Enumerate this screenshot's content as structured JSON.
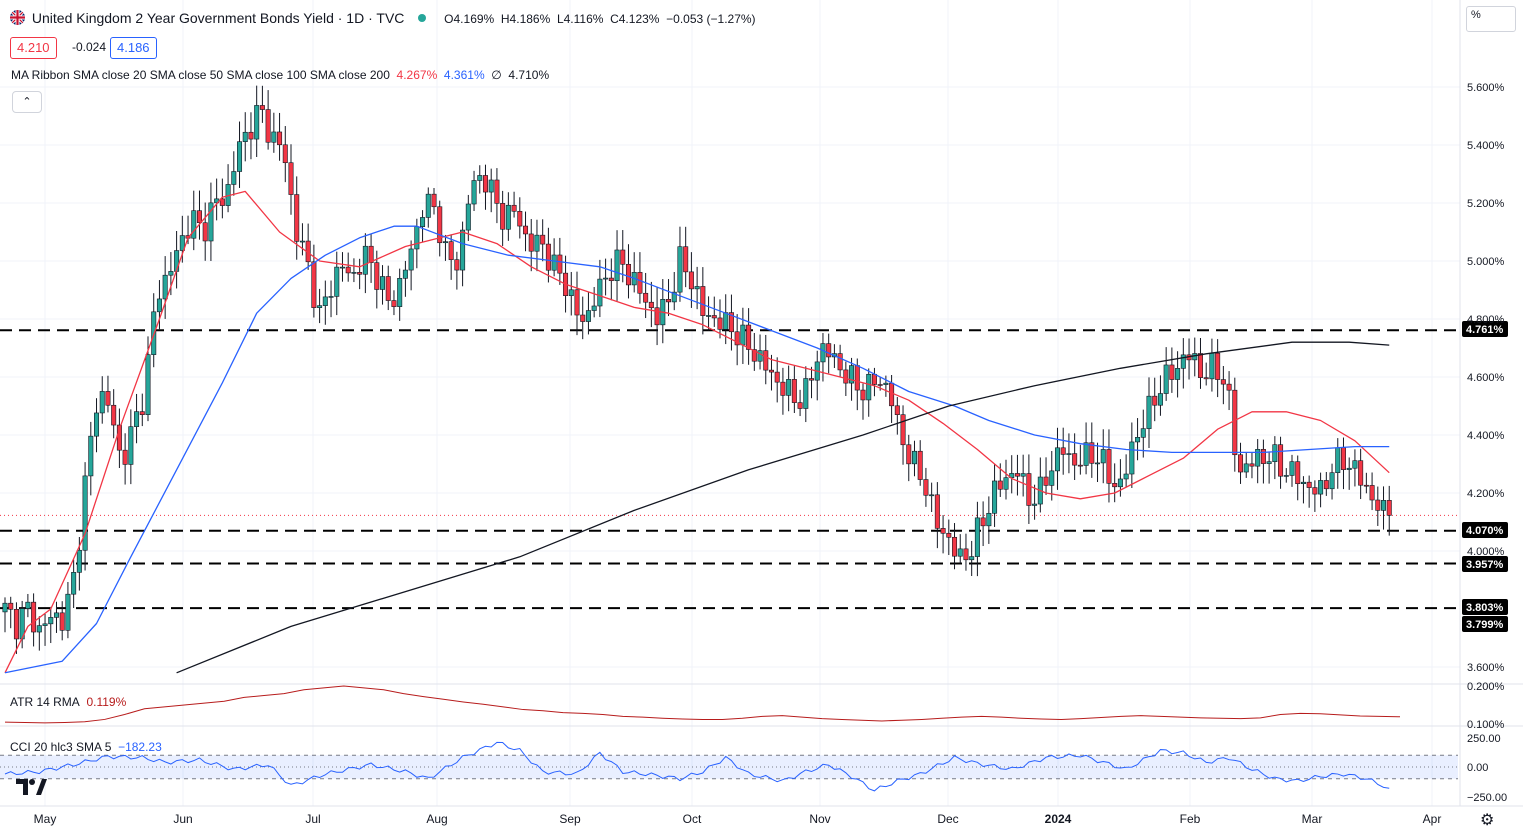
{
  "header": {
    "title": "United Kingdom 2 Year Government Bonds Yield · 1D · TVC",
    "open": "O4.169%",
    "high": "H4.186%",
    "low": "L4.116%",
    "close": "C4.123%",
    "change": "−0.053 (−1.27%)",
    "sell_price": "4.210",
    "spread": "-0.024",
    "buy_price": "4.186"
  },
  "ma_ribbon": {
    "label": "MA Ribbon SMA close 20 SMA close 50 SMA close 100 SMA close 200",
    "v1": "4.267%",
    "v2": "4.361%",
    "v3": "∅",
    "v4": "4.710%"
  },
  "atr": {
    "label": "ATR 14 RMA",
    "value": "0.119%"
  },
  "cci": {
    "label": "CCI 20 hlc3 SMA 5",
    "value": "−182.23"
  },
  "unit_label": "%",
  "colors": {
    "up": "#26a69a",
    "down": "#f23645",
    "sma20": "#f23645",
    "sma50": "#2962ff",
    "sma200": "#131722",
    "atr": "#b71c1c",
    "cci": "#2962ff",
    "cci_band": "#2962ff"
  },
  "icons": {
    "collapse": "chevron-up-icon",
    "logo": "tradingview-logo-icon",
    "settings": "gear-icon"
  },
  "chart_data": {
    "type": "candlestick",
    "x_axis": {
      "labels": [
        "May",
        "Jun",
        "Jul",
        "Aug",
        "Sep",
        "Oct",
        "Nov",
        "Dec",
        "2024",
        "Feb",
        "Mar",
        "Apr"
      ]
    },
    "y_axis": {
      "ticks": [
        "5.600%",
        "5.400%",
        "5.200%",
        "5.000%",
        "4.800%",
        "4.600%",
        "4.400%",
        "4.200%",
        "4.000%",
        "3.600%"
      ],
      "range": [
        3.56,
        5.8
      ]
    },
    "price_levels": [
      {
        "label": "4.761%",
        "value": 4.761
      },
      {
        "label": "4.070%",
        "value": 4.07
      },
      {
        "label": "3.957%",
        "value": 3.957
      },
      {
        "label": "3.803%",
        "value": 3.803
      },
      {
        "label": "3.799%",
        "value": 3.799
      }
    ],
    "last_close": 4.123,
    "ohlc_anchors": [
      [
        "Apr 28",
        3.8
      ],
      [
        "May 1",
        3.75
      ],
      [
        "May 4",
        3.8
      ],
      [
        "May 8",
        3.72
      ],
      [
        "May 12",
        3.78
      ],
      [
        "May 16",
        3.76
      ],
      [
        "May 18",
        3.92
      ],
      [
        "May 19",
        4.27
      ],
      [
        "May 20",
        4.55
      ],
      [
        "May 23",
        4.5
      ],
      [
        "May 25",
        4.3
      ],
      [
        "May 28",
        4.42
      ],
      [
        "Jun 1",
        4.55
      ],
      [
        "Jun 4",
        4.88
      ],
      [
        "Jun 6",
        4.95
      ],
      [
        "Jun 8",
        5.05
      ],
      [
        "Jun 11",
        5.15
      ],
      [
        "Jun 14",
        5.1
      ],
      [
        "Jun 16",
        5.2
      ],
      [
        "Jun 19",
        5.22
      ],
      [
        "Jun 20",
        5.38
      ],
      [
        "Jun 22",
        5.46
      ],
      [
        "Jun 25",
        5.52
      ],
      [
        "Jun 27",
        5.42
      ],
      [
        "Jun 30",
        5.38
      ],
      [
        "Jul 2",
        5.1
      ],
      [
        "Jul 4",
        5.0
      ],
      [
        "Jul 5",
        4.8
      ],
      [
        "Jul 9",
        4.92
      ],
      [
        "Jul 11",
        4.98
      ],
      [
        "Jul 14",
        4.95
      ],
      [
        "Jul 16",
        5.02
      ],
      [
        "Jul 19",
        4.95
      ],
      [
        "Jul 21",
        4.85
      ],
      [
        "Jul 24",
        4.92
      ],
      [
        "Jul 26",
        5.05
      ],
      [
        "Jul 28",
        5.2
      ],
      [
        "Jul 31",
        5.18
      ],
      [
        "Aug 3",
        5.0
      ],
      [
        "Aug 6",
        5.0
      ],
      [
        "Aug 9",
        5.25
      ],
      [
        "Aug 12",
        5.3
      ],
      [
        "Aug 15",
        5.22
      ],
      [
        "Aug 17",
        5.14
      ],
      [
        "Aug 20",
        5.18
      ],
      [
        "Aug 22",
        5.04
      ],
      [
        "Aug 24",
        5.08
      ],
      [
        "Aug 27",
        4.98
      ],
      [
        "Aug 31",
        4.95
      ],
      [
        "Sep 3",
        4.82
      ],
      [
        "Sep 6",
        4.8
      ],
      [
        "Sep 8",
        4.9
      ],
      [
        "Sep 12",
        4.97
      ],
      [
        "Sep 15",
        5.0
      ],
      [
        "Sep 17",
        4.93
      ],
      [
        "Sep 20",
        4.87
      ],
      [
        "Sep 22",
        4.8
      ],
      [
        "Sep 25",
        4.86
      ],
      [
        "Sep 28",
        5.0
      ],
      [
        "Oct 1",
        4.94
      ],
      [
        "Oct 4",
        4.82
      ],
      [
        "Oct 7",
        4.8
      ],
      [
        "Oct 10",
        4.78
      ],
      [
        "Oct 14",
        4.75
      ],
      [
        "Oct 17",
        4.7
      ],
      [
        "Oct 20",
        4.66
      ],
      [
        "Oct 24",
        4.6
      ],
      [
        "Oct 27",
        4.56
      ],
      [
        "Oct 30",
        4.52
      ],
      [
        "Nov 2",
        4.55
      ],
      [
        "Nov 4",
        4.7
      ],
      [
        "Nov 6",
        4.68
      ],
      [
        "Nov 9",
        4.62
      ],
      [
        "Nov 12",
        4.58
      ],
      [
        "Nov 15",
        4.55
      ],
      [
        "Nov 17",
        4.6
      ],
      [
        "Nov 20",
        4.55
      ],
      [
        "Nov 22",
        4.4
      ],
      [
        "Nov 25",
        4.3
      ],
      [
        "Nov 28",
        4.25
      ],
      [
        "Nov 30",
        4.1
      ],
      [
        "Dec 3",
        4.05
      ],
      [
        "Dec 6",
        3.97
      ],
      [
        "Dec 8",
        4.0
      ],
      [
        "Dec 11",
        4.1
      ],
      [
        "Dec 14",
        4.2
      ],
      [
        "Dec 16",
        4.25
      ],
      [
        "Dec 19",
        4.28
      ],
      [
        "Dec 23",
        4.18
      ],
      [
        "Dec 25",
        4.2
      ],
      [
        "Dec 27",
        4.3
      ],
      [
        "Dec 29",
        4.35
      ],
      [
        "Jan 1",
        4.3
      ],
      [
        "Jan 4",
        4.33
      ],
      [
        "Jan 7",
        4.33
      ],
      [
        "Jan 10",
        4.25
      ],
      [
        "Jan 12",
        4.22
      ],
      [
        "Jan 14",
        4.38
      ],
      [
        "Jan 16",
        4.45
      ],
      [
        "Jan 19",
        4.55
      ],
      [
        "Jan 21",
        4.6
      ],
      [
        "Jan 24",
        4.65
      ],
      [
        "Jan 26",
        4.68
      ],
      [
        "Jan 29",
        4.6
      ],
      [
        "Jan 31",
        4.64
      ],
      [
        "Feb 2",
        4.58
      ],
      [
        "Feb 5",
        4.27
      ],
      [
        "Feb 7",
        4.3
      ],
      [
        "Feb 9",
        4.33
      ],
      [
        "Feb 12",
        4.32
      ],
      [
        "Feb 15",
        4.28
      ],
      [
        "Feb 17",
        4.26
      ],
      [
        "Feb 20",
        4.22
      ],
      [
        "Feb 22",
        4.2
      ],
      [
        "Feb 25",
        4.28
      ],
      [
        "Feb 27",
        4.32
      ],
      [
        "Feb 29",
        4.28
      ],
      [
        "Mar 2",
        4.22
      ],
      [
        "Mar 4",
        4.15
      ],
      [
        "Mar 6",
        4.12
      ]
    ],
    "sma20_anchors": [
      [
        0,
        3.58
      ],
      [
        4,
        3.74
      ],
      [
        8,
        3.8
      ],
      [
        14,
        4.06
      ],
      [
        20,
        4.42
      ],
      [
        27,
        4.8
      ],
      [
        32,
        5.08
      ],
      [
        38,
        5.22
      ],
      [
        42,
        5.24
      ],
      [
        48,
        5.1
      ],
      [
        55,
        5.0
      ],
      [
        62,
        4.98
      ],
      [
        70,
        5.05
      ],
      [
        80,
        5.1
      ],
      [
        86,
        5.06
      ],
      [
        92,
        4.98
      ],
      [
        98,
        4.92
      ],
      [
        104,
        4.88
      ],
      [
        110,
        4.84
      ],
      [
        116,
        4.82
      ],
      [
        122,
        4.78
      ],
      [
        128,
        4.72
      ],
      [
        134,
        4.66
      ],
      [
        140,
        4.63
      ],
      [
        146,
        4.6
      ],
      [
        152,
        4.57
      ],
      [
        158,
        4.52
      ],
      [
        164,
        4.44
      ],
      [
        170,
        4.35
      ],
      [
        176,
        4.25
      ],
      [
        182,
        4.2
      ],
      [
        188,
        4.18
      ],
      [
        194,
        4.2
      ],
      [
        200,
        4.26
      ],
      [
        206,
        4.32
      ],
      [
        212,
        4.42
      ],
      [
        218,
        4.48
      ],
      [
        224,
        4.48
      ],
      [
        230,
        4.45
      ],
      [
        236,
        4.38
      ],
      [
        242,
        4.27
      ]
    ],
    "sma50_anchors": [
      [
        0,
        3.58
      ],
      [
        10,
        3.62
      ],
      [
        16,
        3.75
      ],
      [
        22,
        3.98
      ],
      [
        30,
        4.28
      ],
      [
        38,
        4.58
      ],
      [
        44,
        4.82
      ],
      [
        50,
        4.94
      ],
      [
        56,
        5.02
      ],
      [
        62,
        5.08
      ],
      [
        68,
        5.12
      ],
      [
        72,
        5.12
      ],
      [
        80,
        5.06
      ],
      [
        88,
        5.02
      ],
      [
        96,
        5.0
      ],
      [
        104,
        4.98
      ],
      [
        110,
        4.94
      ],
      [
        118,
        4.88
      ],
      [
        126,
        4.82
      ],
      [
        134,
        4.76
      ],
      [
        142,
        4.7
      ],
      [
        150,
        4.63
      ],
      [
        158,
        4.55
      ],
      [
        166,
        4.5
      ],
      [
        172,
        4.45
      ],
      [
        180,
        4.4
      ],
      [
        188,
        4.37
      ],
      [
        196,
        4.35
      ],
      [
        204,
        4.34
      ],
      [
        212,
        4.34
      ],
      [
        220,
        4.34
      ],
      [
        228,
        4.35
      ],
      [
        236,
        4.36
      ],
      [
        242,
        4.36
      ]
    ],
    "sma200_anchors": [
      [
        30,
        3.58
      ],
      [
        50,
        3.74
      ],
      [
        70,
        3.86
      ],
      [
        90,
        3.98
      ],
      [
        110,
        4.14
      ],
      [
        130,
        4.28
      ],
      [
        150,
        4.4
      ],
      [
        165,
        4.5
      ],
      [
        180,
        4.57
      ],
      [
        195,
        4.63
      ],
      [
        210,
        4.68
      ],
      [
        225,
        4.72
      ],
      [
        235,
        4.72
      ],
      [
        242,
        4.71
      ]
    ],
    "atr_values": [
      0.105,
      0.104,
      0.103,
      0.104,
      0.106,
      0.112,
      0.125,
      0.14,
      0.145,
      0.15,
      0.155,
      0.16,
      0.17,
      0.175,
      0.18,
      0.19,
      0.195,
      0.2,
      0.195,
      0.19,
      0.18,
      0.172,
      0.165,
      0.158,
      0.152,
      0.145,
      0.138,
      0.135,
      0.13,
      0.128,
      0.125,
      0.12,
      0.118,
      0.115,
      0.113,
      0.112,
      0.112,
      0.115,
      0.12,
      0.122,
      0.118,
      0.114,
      0.112,
      0.11,
      0.108,
      0.11,
      0.112,
      0.115,
      0.118,
      0.12,
      0.118,
      0.115,
      0.113,
      0.112,
      0.114,
      0.117,
      0.12,
      0.122,
      0.12,
      0.118,
      0.116,
      0.115,
      0.114,
      0.116,
      0.125,
      0.128,
      0.127,
      0.124,
      0.121,
      0.12,
      0.119
    ],
    "cci_anchors": [
      [
        0,
        -60
      ],
      [
        6,
        -40
      ],
      [
        12,
        20
      ],
      [
        18,
        90
      ],
      [
        24,
        80
      ],
      [
        28,
        40
      ],
      [
        34,
        60
      ],
      [
        40,
        -20
      ],
      [
        46,
        20
      ],
      [
        50,
        -160
      ],
      [
        56,
        -60
      ],
      [
        60,
        -20
      ],
      [
        64,
        20
      ],
      [
        70,
        -40
      ],
      [
        74,
        -100
      ],
      [
        80,
        80
      ],
      [
        86,
        210
      ],
      [
        90,
        140
      ],
      [
        94,
        -40
      ],
      [
        100,
        -60
      ],
      [
        104,
        120
      ],
      [
        108,
        -40
      ],
      [
        112,
        -60
      ],
      [
        118,
        -100
      ],
      [
        122,
        -40
      ],
      [
        126,
        80
      ],
      [
        130,
        -60
      ],
      [
        136,
        -120
      ],
      [
        140,
        -40
      ],
      [
        144,
        20
      ],
      [
        148,
        -80
      ],
      [
        152,
        -200
      ],
      [
        156,
        -120
      ],
      [
        160,
        -60
      ],
      [
        166,
        80
      ],
      [
        170,
        30
      ],
      [
        176,
        -20
      ],
      [
        182,
        80
      ],
      [
        188,
        100
      ],
      [
        192,
        40
      ],
      [
        196,
        -20
      ],
      [
        202,
        140
      ],
      [
        206,
        120
      ],
      [
        210,
        40
      ],
      [
        214,
        80
      ],
      [
        218,
        -20
      ],
      [
        222,
        -100
      ],
      [
        226,
        -120
      ],
      [
        230,
        -80
      ],
      [
        234,
        -60
      ],
      [
        238,
        -100
      ],
      [
        242,
        -182
      ]
    ],
    "atr_axis": [
      "0.200%",
      "0.100%"
    ],
    "cci_axis": [
      "250.00",
      "0.00",
      "−250.00"
    ]
  }
}
